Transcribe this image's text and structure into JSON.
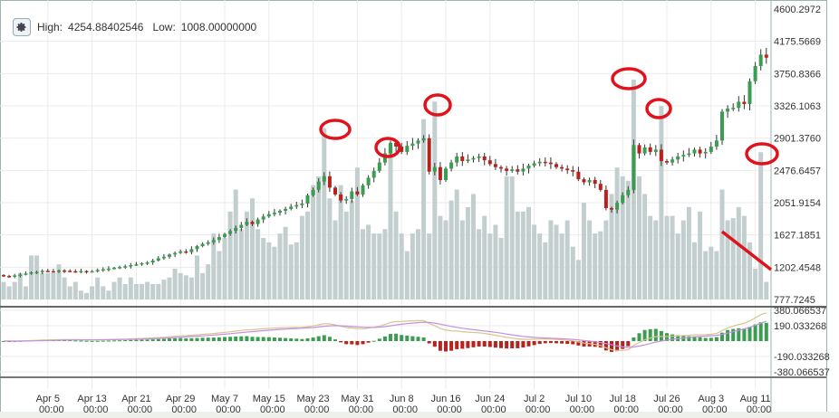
{
  "header": {
    "high_label": "High:",
    "high": "4254.88402546",
    "low_label": "Low:",
    "low": "1008.00000000",
    "settings_icon": "gear-icon"
  },
  "chart_data": {
    "type": "candlestick",
    "price_axis_labels": [
      "4600.2972",
      "4175.5669",
      "3750.8366",
      "3326.1063",
      "2901.3760",
      "2476.6457",
      "2051.9154",
      "1627.1851",
      "1202.4548",
      "777.7245"
    ],
    "price_range": [
      777.7245,
      4600.2972
    ],
    "macd_axis_labels": [
      "380.066537",
      "190.033268",
      "-190.033268",
      "-380.066537"
    ],
    "macd_range": [
      -380.066537,
      380.066537
    ],
    "x_tick_labels": [
      {
        "date": "Apr 5",
        "time": "00:00"
      },
      {
        "date": "Apr 13",
        "time": "00:00"
      },
      {
        "date": "Apr 21",
        "time": "00:00"
      },
      {
        "date": "Apr 29",
        "time": "00:00"
      },
      {
        "date": "May 7",
        "time": "00:00"
      },
      {
        "date": "May 15",
        "time": "00:00"
      },
      {
        "date": "May 23",
        "time": "00:00"
      },
      {
        "date": "May 31",
        "time": "00:00"
      },
      {
        "date": "Jun 8",
        "time": "00:00"
      },
      {
        "date": "Jun 16",
        "time": "00:00"
      },
      {
        "date": "Jun 24",
        "time": "00:00"
      },
      {
        "date": "Jul 2",
        "time": "00:00"
      },
      {
        "date": "Jul 10",
        "time": "00:00"
      },
      {
        "date": "Jul 18",
        "time": "00:00"
      },
      {
        "date": "Jul 26",
        "time": "00:00"
      },
      {
        "date": "Aug 3",
        "time": "00:00"
      },
      {
        "date": "Aug 11",
        "time": "00:00"
      }
    ],
    "interval": "1 day",
    "first_open": 1100,
    "close": [
      1087,
      1080,
      1095,
      1105,
      1120,
      1135,
      1140,
      1155,
      1150,
      1147,
      1160,
      1155,
      1150,
      1145,
      1152,
      1148,
      1150,
      1165,
      1175,
      1185,
      1195,
      1205,
      1215,
      1230,
      1240,
      1255,
      1265,
      1290,
      1320,
      1340,
      1370,
      1390,
      1410,
      1400,
      1440,
      1480,
      1510,
      1530,
      1560,
      1600,
      1640,
      1680,
      1720,
      1760,
      1800,
      1770,
      1830,
      1870,
      1900,
      1920,
      1945,
      1970,
      2000,
      2020,
      2040,
      2150,
      2220,
      2330,
      2400,
      2250,
      2160,
      2080,
      2100,
      2200,
      2160,
      2280,
      2380,
      2470,
      2580,
      2700,
      2840,
      2790,
      2720,
      2800,
      2830,
      2870,
      2900,
      2460,
      2520,
      2350,
      2500,
      2580,
      2660,
      2600,
      2620,
      2640,
      2660,
      2610,
      2560,
      2520,
      2500,
      2470,
      2490,
      2460,
      2500,
      2540,
      2570,
      2590,
      2580,
      2560,
      2520,
      2500,
      2480,
      2460,
      2360,
      2320,
      2350,
      2300,
      2220,
      1980,
      1960,
      2050,
      2150,
      2220,
      2810,
      2700,
      2780,
      2720,
      2750,
      2600,
      2580,
      2620,
      2660,
      2680,
      2700,
      2750,
      2700,
      2720,
      2790,
      2870,
      3250,
      3290,
      3300,
      3380,
      3350,
      3650,
      3850,
      4000,
      3960
    ],
    "volume_relative_pct": [
      8,
      6,
      8,
      12,
      6,
      20,
      20,
      12,
      12,
      12,
      16,
      10,
      6,
      8,
      4,
      3,
      6,
      10,
      6,
      4,
      8,
      10,
      7,
      10,
      7,
      7,
      8,
      7,
      7,
      9,
      10,
      14,
      12,
      11,
      10,
      20,
      12,
      16,
      30,
      22,
      28,
      40,
      50,
      32,
      40,
      46,
      32,
      28,
      26,
      24,
      30,
      33,
      25,
      26,
      38,
      40,
      52,
      56,
      78,
      46,
      36,
      52,
      40,
      45,
      60,
      32,
      34,
      30,
      30,
      32,
      70,
      40,
      30,
      22,
      30,
      32,
      82,
      30,
      90,
      38,
      36,
      45,
      50,
      36,
      42,
      48,
      32,
      38,
      30,
      34,
      28,
      56,
      56,
      40,
      40,
      42,
      34,
      30,
      26,
      36,
      34,
      30,
      36,
      24,
      18,
      44,
      36,
      30,
      31,
      36,
      48,
      60,
      56,
      54,
      100,
      56,
      48,
      38,
      36,
      88,
      38,
      38,
      30,
      36,
      42,
      26,
      40,
      22,
      24,
      22,
      50,
      36,
      37,
      42,
      38,
      26,
      14,
      67,
      8
    ],
    "indicator": "MACD",
    "colors": {
      "up": "#3a9d4f",
      "down": "#b8221e",
      "volume": "#c3cfcf",
      "macd_line": "#d6c68c",
      "signal_line": "#c58fe0",
      "annotation": "#e0121b"
    }
  }
}
